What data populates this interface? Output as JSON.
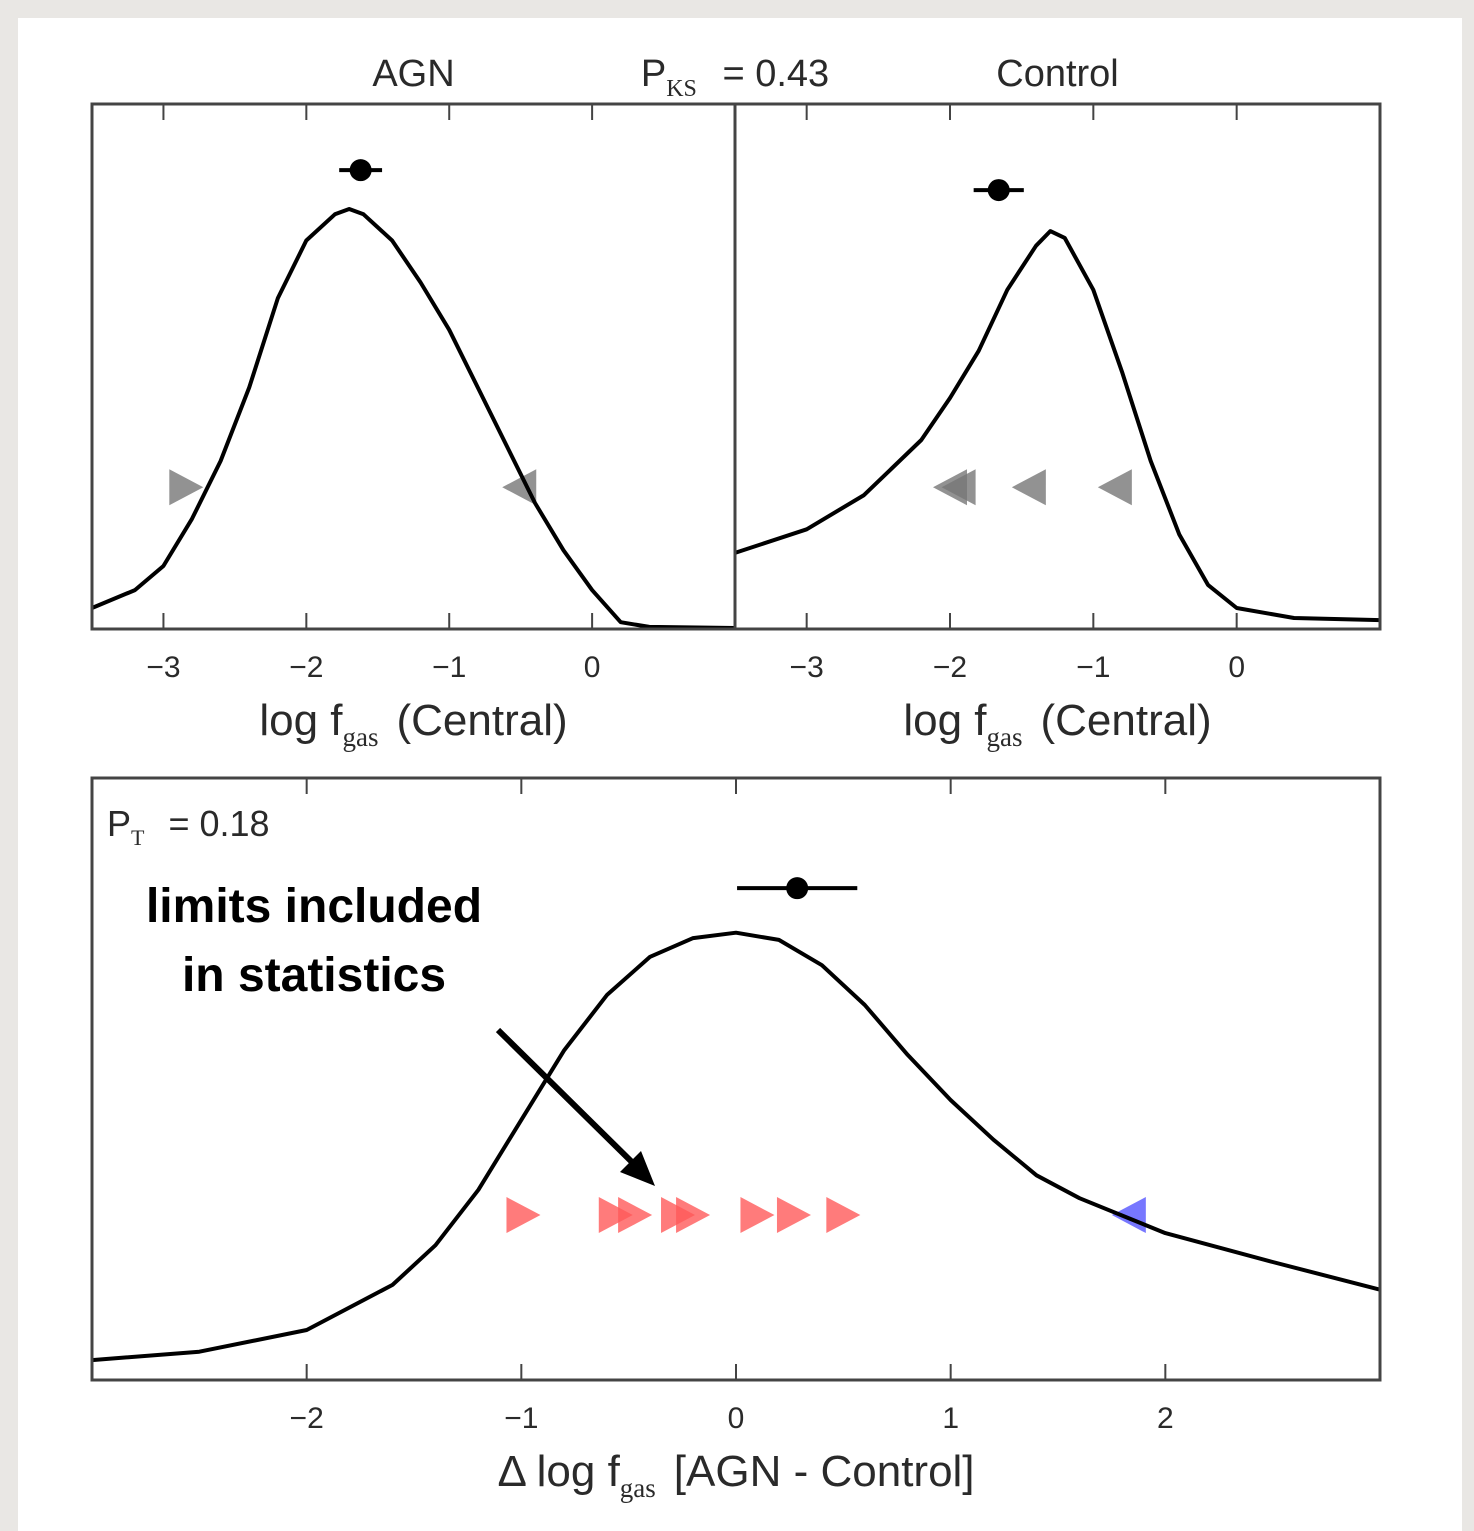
{
  "chart_data": [
    {
      "type": "line",
      "title": "AGN",
      "annotation": [
        "P",
        "KS",
        " = 0.43"
      ],
      "xlabel": [
        "log f",
        "gas",
        "(Central)"
      ],
      "xlim": [
        -3.5,
        1.0
      ],
      "ylim": [
        0,
        1
      ],
      "xticks": [
        {
          "value": -3,
          "label": "−3"
        },
        {
          "value": -2,
          "label": "−2"
        },
        {
          "value": -1,
          "label": "−1"
        },
        0
      ],
      "series": [
        {
          "color": "#000000",
          "x": [
            -3.5,
            -3.2,
            -3.0,
            -2.8,
            -2.6,
            -2.4,
            -2.2,
            -2.0,
            -1.8,
            -1.7,
            -1.6,
            -1.4,
            -1.2,
            -1.0,
            -0.8,
            -0.6,
            -0.4,
            -0.2,
            0,
            0.2,
            0.4,
            1.0
          ],
          "values": [
            0.04,
            0.074,
            0.12,
            0.21,
            0.32,
            0.46,
            0.63,
            0.74,
            0.79,
            0.8,
            0.79,
            0.74,
            0.66,
            0.57,
            0.46,
            0.35,
            0.24,
            0.15,
            0.074,
            0.013,
            0.004,
            0.002
          ]
        }
      ],
      "point": {
        "x": -1.62,
        "y": 0.874,
        "xerr": 0.15,
        "color": "#000000"
      },
      "limits": [
        {
          "x": -2.84,
          "y": 0.27,
          "direction": "right",
          "color": "#777777"
        },
        {
          "x": -0.51,
          "y": 0.27,
          "direction": "left",
          "color": "#777777"
        }
      ]
    },
    {
      "type": "line",
      "title": "Control",
      "xlabel": [
        "log f",
        "gas",
        "(Central)"
      ],
      "xlim": [
        -3.5,
        1.0
      ],
      "ylim": [
        0,
        1
      ],
      "xticks": [
        {
          "value": -3,
          "label": "−3"
        },
        {
          "value": -2,
          "label": "−2"
        },
        {
          "value": -1,
          "label": "−1"
        },
        0
      ],
      "series": [
        {
          "color": "#000000",
          "x": [
            -3.5,
            -3.0,
            -2.6,
            -2.2,
            -2.0,
            -1.8,
            -1.6,
            -1.4,
            -1.3,
            -1.2,
            -1.0,
            -0.8,
            -0.6,
            -0.4,
            -0.2,
            0,
            0.4,
            1.0
          ],
          "values": [
            0.145,
            0.19,
            0.255,
            0.36,
            0.44,
            0.53,
            0.646,
            0.73,
            0.758,
            0.745,
            0.646,
            0.49,
            0.32,
            0.18,
            0.084,
            0.04,
            0.021,
            0.017
          ]
        }
      ],
      "point": {
        "x": -1.66,
        "y": 0.836,
        "xerr": 0.175,
        "color": "#000000"
      },
      "limits": [
        {
          "x": -2.0,
          "y": 0.27,
          "direction": "left",
          "color": "#777777"
        },
        {
          "x": -1.94,
          "y": 0.27,
          "direction": "left",
          "color": "#777777"
        },
        {
          "x": -1.45,
          "y": 0.27,
          "direction": "left",
          "color": "#777777"
        },
        {
          "x": -0.85,
          "y": 0.27,
          "direction": "left",
          "color": "#777777"
        }
      ]
    },
    {
      "type": "line",
      "annotation": [
        "P",
        "T",
        " = 0.18"
      ],
      "note": [
        "limits included",
        "in statistics"
      ],
      "xlabel": [
        "Δ  log f",
        "gas",
        "[AGN - Control]"
      ],
      "xlim": [
        -3.0,
        3.0
      ],
      "ylim": [
        0,
        1
      ],
      "xticks": [
        {
          "value": -2,
          "label": "−2"
        },
        {
          "value": -1,
          "label": "−1"
        },
        0,
        1,
        2
      ],
      "series": [
        {
          "color": "#000000",
          "x": [
            -3.0,
            -2.5,
            -2.0,
            -1.6,
            -1.4,
            -1.2,
            -1.0,
            -0.8,
            -0.6,
            -0.4,
            -0.2,
            0,
            0.2,
            0.4,
            0.6,
            0.8,
            1.0,
            1.2,
            1.4,
            1.6,
            2.0,
            2.5,
            3.0
          ],
          "values": [
            0.033,
            0.047,
            0.083,
            0.158,
            0.224,
            0.316,
            0.432,
            0.548,
            0.64,
            0.703,
            0.734,
            0.743,
            0.731,
            0.689,
            0.623,
            0.54,
            0.465,
            0.399,
            0.34,
            0.302,
            0.244,
            0.196,
            0.15
          ]
        }
      ],
      "point": {
        "x": 0.285,
        "y": 0.817,
        "xerr": 0.28,
        "color": "#000000"
      },
      "limits": [
        {
          "x": -0.99,
          "y": 0.274,
          "direction": "right",
          "color": "#ff5a5a"
        },
        {
          "x": -0.56,
          "y": 0.274,
          "direction": "right",
          "color": "#ff5a5a"
        },
        {
          "x": -0.47,
          "y": 0.274,
          "direction": "right",
          "color": "#ff5a5a"
        },
        {
          "x": -0.27,
          "y": 0.274,
          "direction": "right",
          "color": "#ff5a5a"
        },
        {
          "x": -0.2,
          "y": 0.274,
          "direction": "right",
          "color": "#ff5a5a"
        },
        {
          "x": 0.1,
          "y": 0.274,
          "direction": "right",
          "color": "#ff5a5a"
        },
        {
          "x": 0.27,
          "y": 0.274,
          "direction": "right",
          "color": "#ff5a5a"
        },
        {
          "x": 0.5,
          "y": 0.274,
          "direction": "right",
          "color": "#ff5a5a"
        },
        {
          "x": 1.83,
          "y": 0.274,
          "direction": "left",
          "color": "#5555ff"
        }
      ]
    }
  ]
}
